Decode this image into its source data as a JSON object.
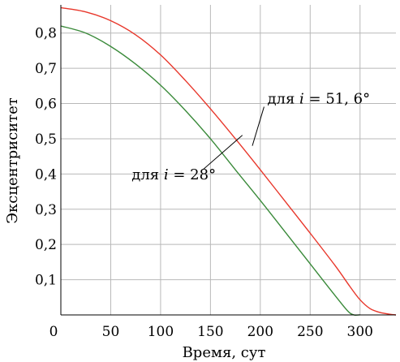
{
  "chart_data": {
    "type": "line",
    "xlabel": "Время, сут",
    "ylabel": "Эксцентриситет",
    "xlim": [
      0,
      336
    ],
    "ylim": [
      0,
      0.88
    ],
    "xticks": [
      0,
      50,
      100,
      150,
      200,
      250,
      300
    ],
    "xtick_labels": [
      "0",
      "50",
      "100",
      "150",
      "200",
      "250",
      "300"
    ],
    "yticks": [
      0.1,
      0.2,
      0.3,
      0.4,
      0.5,
      0.6,
      0.7,
      0.8
    ],
    "ytick_labels": [
      "0,1",
      "0,2",
      "0,3",
      "0,4",
      "0,5",
      "0,6",
      "0,7",
      "0,8"
    ],
    "grid": true,
    "legend": "none",
    "series": [
      {
        "color": "#e8372b",
        "x": [
          0,
          25,
          50,
          75,
          100,
          125,
          150,
          175,
          200,
          225,
          250,
          275,
          290,
          300,
          310,
          320,
          330,
          336
        ],
        "y": [
          0.872,
          0.86,
          0.835,
          0.795,
          0.738,
          0.665,
          0.585,
          0.5,
          0.412,
          0.322,
          0.232,
          0.14,
          0.08,
          0.043,
          0.018,
          0.007,
          0.002,
          0.0
        ]
      },
      {
        "color": "#3a8a3a",
        "x": [
          0,
          25,
          50,
          75,
          100,
          125,
          150,
          175,
          200,
          225,
          250,
          275,
          290,
          300
        ],
        "y": [
          0.82,
          0.8,
          0.762,
          0.712,
          0.652,
          0.58,
          0.5,
          0.412,
          0.325,
          0.235,
          0.145,
          0.055,
          0.005,
          0.0
        ]
      }
    ],
    "annotations": [
      {
        "id": "red",
        "text_prefix": "для ",
        "var": "i",
        "text_suffix": " = 51, 6°",
        "x": 207,
        "y": 0.6,
        "target_x": 192,
        "target_y": 0.48
      },
      {
        "id": "green",
        "text_prefix": "для ",
        "var": "i",
        "text_suffix": " = 28°",
        "x": 71,
        "y": 0.385,
        "target_x": 182,
        "target_y": 0.51
      }
    ]
  }
}
